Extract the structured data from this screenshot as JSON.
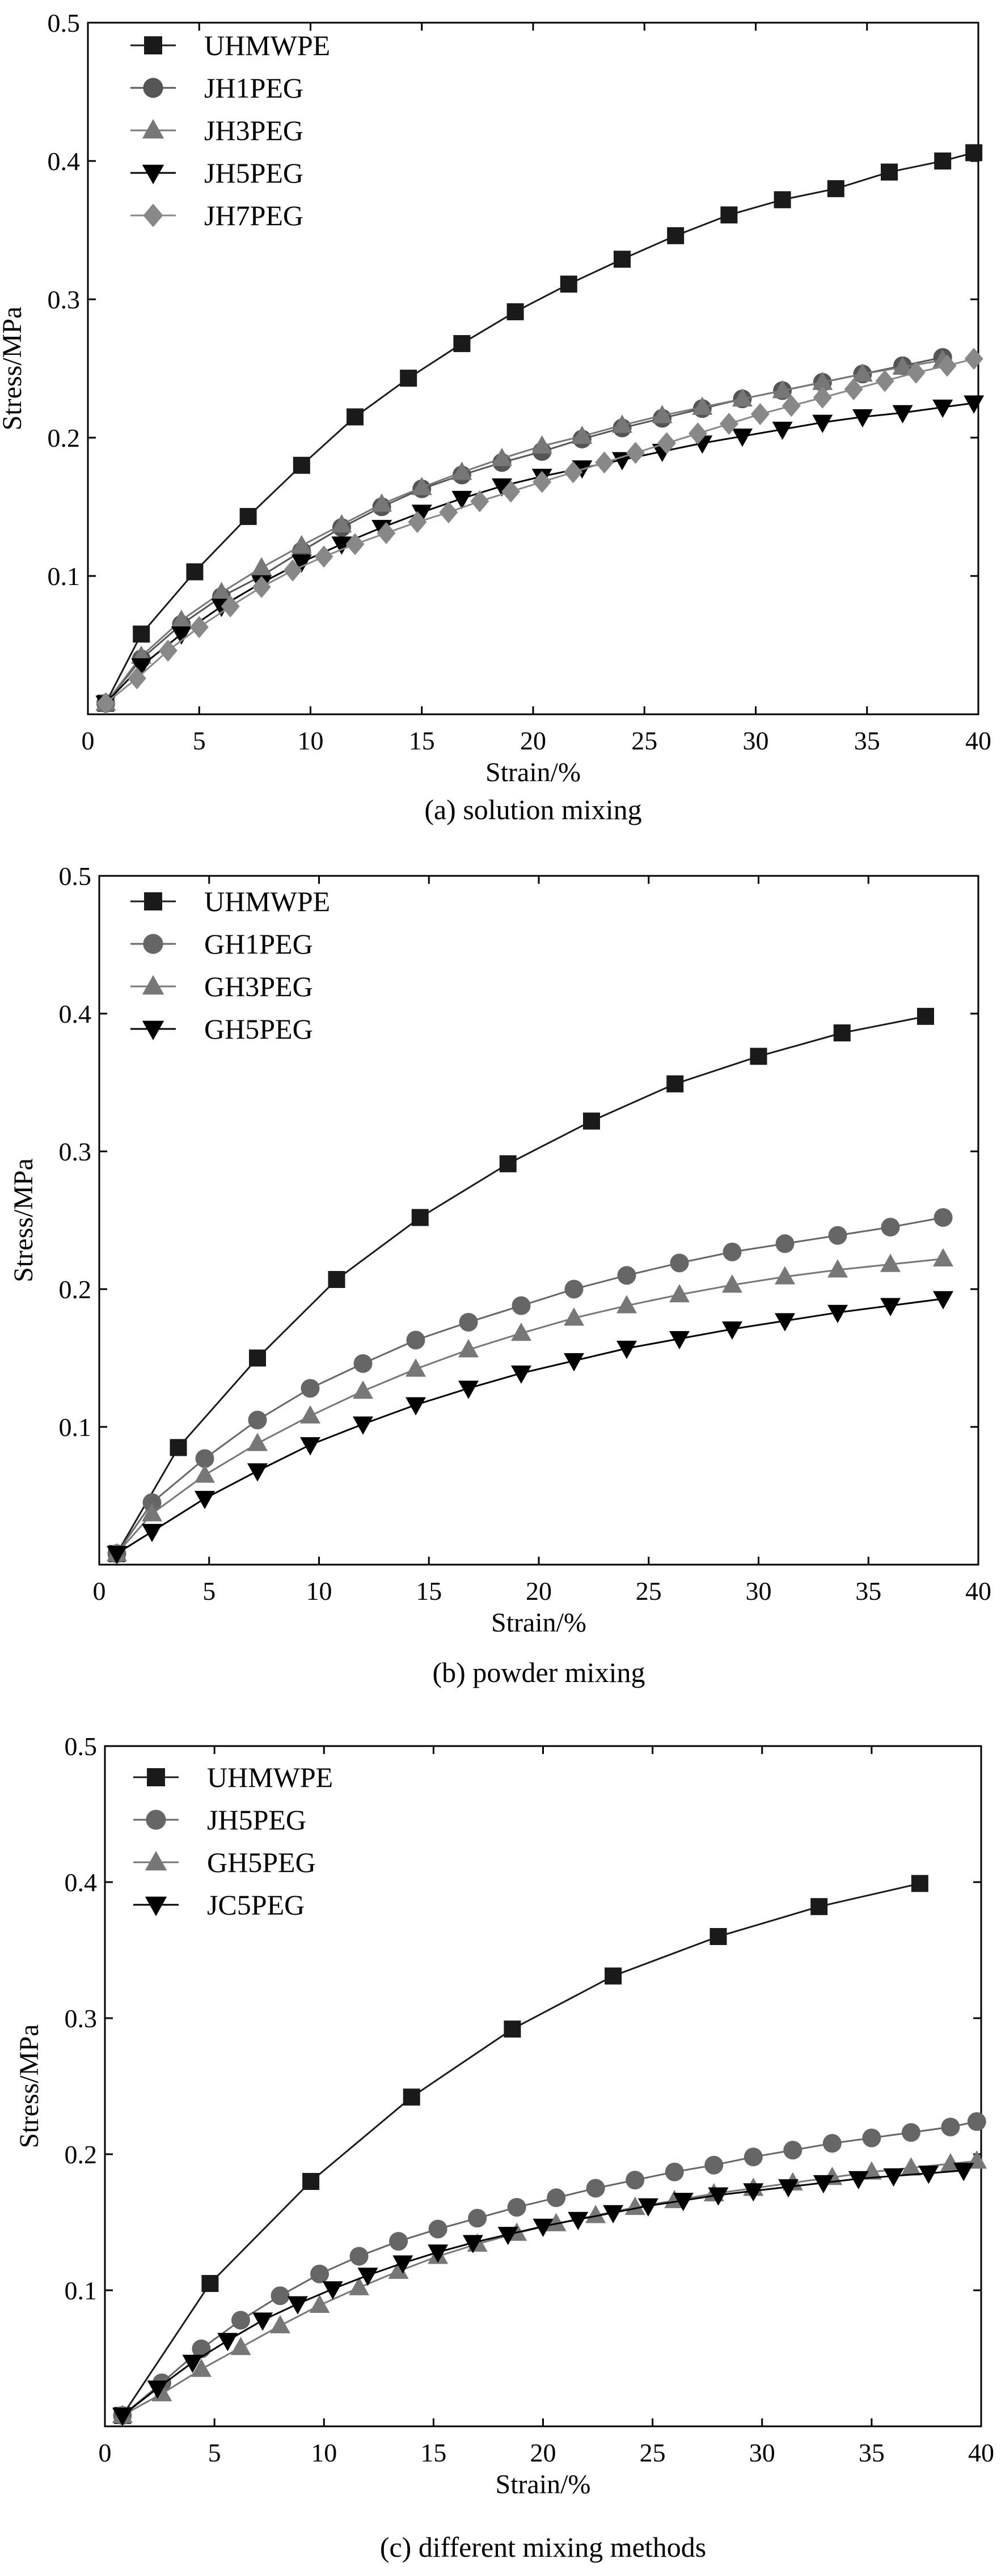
{
  "chart_data": [
    {
      "type": "scatter",
      "panel": "a",
      "caption": "(a) solution mixing",
      "xlabel": "Strain/%",
      "ylabel": "Stress/MPa",
      "xlim": [
        0,
        40
      ],
      "ylim": [
        0,
        0.5
      ],
      "xticks": [
        0,
        5,
        10,
        15,
        20,
        25,
        30,
        35,
        40
      ],
      "yticks": [
        0.1,
        0.2,
        0.3,
        0.4,
        0.5
      ],
      "xtick_labels": [
        "0",
        "5",
        "10",
        "15",
        "20",
        "25",
        "30",
        "35",
        "40"
      ],
      "ytick_labels": [
        "0.1",
        "0.2",
        "0.3",
        "0.4",
        "0.5"
      ],
      "legend_position": "top-left",
      "series": [
        {
          "name": "UHMWPE",
          "marker": "square",
          "color": "#1a1a1a",
          "x": [
            0.8,
            2.4,
            4.8,
            7.2,
            9.6,
            12,
            14.4,
            16.8,
            19.2,
            21.6,
            24,
            26.4,
            28.8,
            31.2,
            33.6,
            36,
            38.4,
            39.8
          ],
          "y": [
            0.008,
            0.058,
            0.103,
            0.143,
            0.18,
            0.215,
            0.243,
            0.268,
            0.291,
            0.311,
            0.329,
            0.346,
            0.361,
            0.372,
            0.38,
            0.392,
            0.4,
            0.406
          ]
        },
        {
          "name": "JH1PEG",
          "marker": "circle",
          "color": "#555555",
          "x": [
            0.8,
            2.4,
            4.2,
            6,
            7.8,
            9.6,
            11.4,
            13.2,
            15,
            16.8,
            18.6,
            20.4,
            22.2,
            24,
            25.8,
            27.6,
            29.4,
            31.2,
            33,
            34.8,
            36.6,
            38.4
          ],
          "y": [
            0.008,
            0.04,
            0.065,
            0.085,
            0.1,
            0.118,
            0.135,
            0.15,
            0.163,
            0.173,
            0.182,
            0.19,
            0.199,
            0.207,
            0.214,
            0.221,
            0.228,
            0.234,
            0.24,
            0.246,
            0.252,
            0.258
          ]
        },
        {
          "name": "JH3PEG",
          "marker": "triangle-up",
          "color": "#777777",
          "x": [
            0.8,
            2.4,
            4.2,
            6,
            7.8,
            9.6,
            11.4,
            13.2,
            15,
            16.8,
            18.6,
            20.4,
            22.2,
            24,
            25.8,
            27.6,
            29.4,
            31.2,
            33,
            34.8,
            36.6,
            38.4
          ],
          "y": [
            0.008,
            0.042,
            0.068,
            0.088,
            0.106,
            0.122,
            0.137,
            0.152,
            0.164,
            0.175,
            0.185,
            0.194,
            0.201,
            0.209,
            0.216,
            0.222,
            0.228,
            0.234,
            0.24,
            0.246,
            0.251,
            0.256
          ]
        },
        {
          "name": "JH5PEG",
          "marker": "triangle-down",
          "color": "#000000",
          "x": [
            0.8,
            2.4,
            4.2,
            6,
            7.8,
            9.6,
            11.4,
            13.2,
            15,
            16.8,
            18.6,
            20.4,
            22.2,
            24,
            25.8,
            27.6,
            29.4,
            31.2,
            33,
            34.8,
            36.6,
            38.4,
            39.8
          ],
          "y": [
            0.008,
            0.035,
            0.058,
            0.078,
            0.095,
            0.11,
            0.123,
            0.135,
            0.146,
            0.156,
            0.165,
            0.172,
            0.178,
            0.184,
            0.19,
            0.196,
            0.201,
            0.206,
            0.211,
            0.215,
            0.218,
            0.222,
            0.225
          ]
        },
        {
          "name": "JH7PEG",
          "marker": "diamond",
          "color": "#888888",
          "x": [
            0.8,
            2.2,
            3.6,
            5,
            6.4,
            7.8,
            9.2,
            10.6,
            12,
            13.4,
            14.8,
            16.2,
            17.6,
            19,
            20.4,
            21.8,
            23.2,
            24.6,
            26,
            27.4,
            28.8,
            30.2,
            31.6,
            33,
            34.4,
            35.8,
            37.2,
            38.6,
            39.8
          ],
          "y": [
            0.008,
            0.026,
            0.046,
            0.063,
            0.078,
            0.092,
            0.104,
            0.114,
            0.123,
            0.131,
            0.139,
            0.146,
            0.154,
            0.161,
            0.168,
            0.175,
            0.182,
            0.189,
            0.196,
            0.203,
            0.21,
            0.217,
            0.223,
            0.229,
            0.235,
            0.241,
            0.247,
            0.252,
            0.257
          ]
        }
      ]
    },
    {
      "type": "scatter",
      "panel": "b",
      "caption": "(b) powder mixing",
      "xlabel": "Strain/%",
      "ylabel": "Stress/MPa",
      "xlim": [
        0,
        40
      ],
      "ylim": [
        0,
        0.5
      ],
      "xticks": [
        0,
        5,
        10,
        15,
        20,
        25,
        30,
        35,
        40
      ],
      "yticks": [
        0.1,
        0.2,
        0.3,
        0.4,
        0.5
      ],
      "xtick_labels": [
        "0",
        "5",
        "10",
        "15",
        "20",
        "25",
        "30",
        "35",
        "40"
      ],
      "ytick_labels": [
        "0.1",
        "0.2",
        "0.3",
        "0.4",
        "0.5"
      ],
      "legend_position": "top-left",
      "series": [
        {
          "name": "UHMWPE",
          "marker": "square",
          "color": "#1a1a1a",
          "x": [
            0.8,
            3.6,
            7.2,
            10.8,
            14.6,
            18.6,
            22.4,
            26.2,
            30,
            33.8,
            37.6
          ],
          "y": [
            0.008,
            0.085,
            0.15,
            0.207,
            0.252,
            0.291,
            0.322,
            0.349,
            0.369,
            0.386,
            0.398
          ]
        },
        {
          "name": "GH1PEG",
          "marker": "circle",
          "color": "#666666",
          "x": [
            0.8,
            2.4,
            4.8,
            7.2,
            9.6,
            12,
            14.4,
            16.8,
            19.2,
            21.6,
            24,
            26.4,
            28.8,
            31.2,
            33.6,
            36,
            38.4
          ],
          "y": [
            0.008,
            0.045,
            0.077,
            0.105,
            0.128,
            0.146,
            0.163,
            0.176,
            0.188,
            0.2,
            0.21,
            0.219,
            0.227,
            0.233,
            0.239,
            0.245,
            0.252
          ]
        },
        {
          "name": "GH3PEG",
          "marker": "triangle-up",
          "color": "#777777",
          "x": [
            0.8,
            2.4,
            4.8,
            7.2,
            9.6,
            12,
            14.4,
            16.8,
            19.2,
            21.6,
            24,
            26.4,
            28.8,
            31.2,
            33.6,
            36,
            38.4
          ],
          "y": [
            0.008,
            0.037,
            0.065,
            0.088,
            0.108,
            0.126,
            0.142,
            0.156,
            0.168,
            0.179,
            0.188,
            0.196,
            0.203,
            0.209,
            0.214,
            0.218,
            0.222
          ]
        },
        {
          "name": "GH5PEG",
          "marker": "triangle-down",
          "color": "#000000",
          "x": [
            0.8,
            2.4,
            4.8,
            7.2,
            9.6,
            12,
            14.4,
            16.8,
            19.2,
            21.6,
            24,
            26.4,
            28.8,
            31.2,
            33.6,
            36,
            38.4
          ],
          "y": [
            0.008,
            0.024,
            0.048,
            0.068,
            0.087,
            0.102,
            0.116,
            0.128,
            0.139,
            0.148,
            0.157,
            0.164,
            0.171,
            0.177,
            0.183,
            0.188,
            0.193
          ]
        }
      ]
    },
    {
      "type": "scatter",
      "panel": "c",
      "caption": "(c) different mixing methods",
      "xlabel": "Strain/%",
      "ylabel": "Stress/MPa",
      "xlim": [
        0,
        40
      ],
      "ylim": [
        0,
        0.5
      ],
      "xticks": [
        0,
        5,
        10,
        15,
        20,
        25,
        30,
        35,
        40
      ],
      "yticks": [
        0.1,
        0.2,
        0.3,
        0.4,
        0.5
      ],
      "xtick_labels": [
        "0",
        "5",
        "10",
        "15",
        "20",
        "25",
        "30",
        "35",
        "40"
      ],
      "ytick_labels": [
        "0.1",
        "0.2",
        "0.3",
        "0.4",
        "0.5"
      ],
      "legend_position": "top-left",
      "series": [
        {
          "name": "UHMWPE",
          "marker": "square",
          "color": "#1a1a1a",
          "x": [
            0.8,
            4.8,
            9.4,
            14,
            18.6,
            23.2,
            28,
            32.6,
            37.2
          ],
          "y": [
            0.008,
            0.105,
            0.18,
            0.242,
            0.292,
            0.331,
            0.36,
            0.382,
            0.399
          ]
        },
        {
          "name": "JH5PEG",
          "marker": "circle",
          "color": "#666666",
          "x": [
            0.8,
            2.6,
            4.4,
            6.2,
            8,
            9.8,
            11.6,
            13.4,
            15.2,
            17,
            18.8,
            20.6,
            22.4,
            24.2,
            26,
            27.8,
            29.6,
            31.4,
            33.2,
            35,
            36.8,
            38.6,
            39.8
          ],
          "y": [
            0.008,
            0.032,
            0.057,
            0.078,
            0.096,
            0.112,
            0.125,
            0.136,
            0.145,
            0.153,
            0.161,
            0.168,
            0.175,
            0.181,
            0.187,
            0.192,
            0.198,
            0.203,
            0.208,
            0.212,
            0.216,
            0.22,
            0.224
          ]
        },
        {
          "name": "GH5PEG",
          "marker": "triangle-up",
          "color": "#777777",
          "x": [
            0.8,
            2.6,
            4.4,
            6.2,
            8,
            9.8,
            11.6,
            13.4,
            15.2,
            17,
            18.8,
            20.6,
            22.4,
            24.2,
            26,
            27.8,
            29.6,
            31.4,
            33.2,
            35,
            36.8,
            38.6,
            39.8
          ],
          "y": [
            0.008,
            0.024,
            0.042,
            0.058,
            0.074,
            0.089,
            0.102,
            0.114,
            0.125,
            0.134,
            0.142,
            0.149,
            0.155,
            0.161,
            0.166,
            0.171,
            0.175,
            0.179,
            0.183,
            0.187,
            0.19,
            0.193,
            0.195
          ]
        },
        {
          "name": "JC5PEG",
          "marker": "triangle-down",
          "color": "#000000",
          "x": [
            0.8,
            2.4,
            4,
            5.6,
            7.2,
            8.8,
            10.4,
            12,
            13.6,
            15.2,
            16.8,
            18.4,
            20,
            21.6,
            23.2,
            24.8,
            26.4,
            28,
            29.6,
            31.2,
            32.8,
            34.4,
            36,
            37.6,
            39.2
          ],
          "y": [
            0.008,
            0.028,
            0.047,
            0.063,
            0.078,
            0.09,
            0.101,
            0.111,
            0.12,
            0.128,
            0.135,
            0.141,
            0.147,
            0.152,
            0.157,
            0.162,
            0.166,
            0.17,
            0.173,
            0.176,
            0.179,
            0.182,
            0.184,
            0.186,
            0.188
          ]
        }
      ]
    }
  ]
}
